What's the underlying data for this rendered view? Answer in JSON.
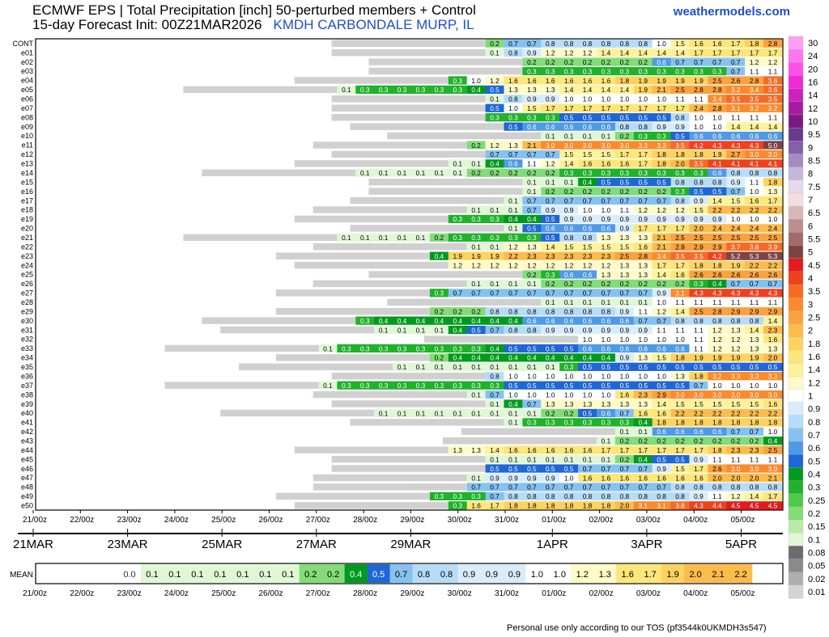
{
  "header": {
    "line1": "ECMWF EPS | Total Precipitation [inch]  50-perturbed members + Control",
    "line2": "15-day Forecast Init: 00Z21MAR2026",
    "location": "KMDH CARBONDALE MURP, IL",
    "brand": "weathermodels.com"
  },
  "footer": "Personal use only according to our TOS (pf3544k0UKMDH3s547)",
  "chart_data": {
    "type": "heatmap",
    "title": "ECMWF EPS | Total Precipitation [inch]",
    "units": "inch",
    "x_ticks": [
      "21/00z",
      "22/00z",
      "23/00z",
      "24/00z",
      "25/00z",
      "26/00z",
      "27/00z",
      "28/00z",
      "29/00z",
      "30/00z",
      "31/00z",
      "01/00z",
      "02/00z",
      "03/00z",
      "04/00z",
      "05/00z"
    ],
    "date_labels": [
      {
        "label": "21MAR",
        "tick": 0
      },
      {
        "label": "23MAR",
        "tick": 2
      },
      {
        "label": "25MAR",
        "tick": 4
      },
      {
        "label": "27MAR",
        "tick": 6
      },
      {
        "label": "29MAR",
        "tick": 8
      },
      {
        "label": "1APR",
        "tick": 11
      },
      {
        "label": "3APR",
        "tick": 13
      },
      {
        "label": "5APR",
        "tick": 15
      }
    ],
    "members": [
      "CONT",
      "e01",
      "e02",
      "e03",
      "e04",
      "e05",
      "e06",
      "e07",
      "e08",
      "e09",
      "e10",
      "e11",
      "e12",
      "e13",
      "e14",
      "e15",
      "e16",
      "e17",
      "e18",
      "e19",
      "e20",
      "e21",
      "e22",
      "e23",
      "e24",
      "e25",
      "e26",
      "e27",
      "e28",
      "e29",
      "e30",
      "e31",
      "e32",
      "e33",
      "e34",
      "e35",
      "e36",
      "e37",
      "e38",
      "e39",
      "e40",
      "e41",
      "e42",
      "e43",
      "e44",
      "e45",
      "e46",
      "e47",
      "e48",
      "e49",
      "e50"
    ],
    "member_values": [
      [
        0.2,
        0.7,
        0.7,
        0.8,
        0.8,
        0.8,
        0.8,
        0.8,
        0.8,
        1.0,
        1.5,
        1.6,
        1.6,
        1.7,
        1.8,
        2.8
      ],
      [
        0.1,
        0.8,
        0.9,
        1.2,
        1.2,
        1.2,
        1.4,
        1.4,
        1.4,
        1.4,
        1.4,
        1.7,
        1.7,
        1.7,
        1.7,
        1.7
      ],
      [
        0.2,
        0.2,
        0.2,
        0.2,
        0.2,
        0.2,
        0.2,
        0.6,
        0.7,
        0.7,
        0.7,
        0.7,
        1.2,
        1.2
      ],
      [
        0.3,
        0.3,
        0.3,
        0.3,
        0.3,
        0.3,
        0.3,
        0.3,
        0.3,
        0.3,
        0.3,
        0.7,
        1.1,
        1.1
      ],
      [
        0.3,
        1.0,
        1.2,
        1.6,
        1.6,
        1.6,
        1.6,
        1.6,
        1.6,
        1.8,
        1.9,
        1.9,
        1.9,
        1.9,
        2.5,
        2.6,
        2.8,
        3.6
      ],
      [
        0.1,
        0.3,
        0.3,
        0.3,
        0.3,
        0.3,
        0.3,
        0.4,
        0.5,
        1.3,
        1.3,
        1.3,
        1.4,
        1.4,
        1.4,
        1.4,
        1.9,
        2.1,
        2.5,
        2.8,
        2.8,
        3.2,
        3.4,
        3.6
      ],
      [
        0.1,
        0.8,
        0.9,
        0.9,
        1.0,
        1.0,
        1.0,
        1.0,
        1.0,
        1.0,
        1.1,
        1.1,
        3.4,
        3.5,
        3.5,
        3.5
      ],
      [
        0.5,
        1.0,
        1.5,
        1.7,
        1.7,
        1.7,
        1.7,
        1.7,
        1.7,
        1.7,
        1.7,
        2.4,
        2.8,
        3.1,
        3.2,
        3.2
      ],
      [
        0.3,
        0.3,
        0.3,
        0.3,
        0.5,
        0.5,
        0.5,
        0.5,
        0.5,
        0.5,
        0.8,
        1.0,
        1.0,
        1.1,
        1.1,
        1.1
      ],
      [
        0.5,
        0.6,
        0.6,
        0.6,
        0.6,
        0.6,
        0.8,
        0.8,
        0.9,
        0.9,
        1.0,
        1.0,
        1.4,
        1.4,
        1.4
      ],
      [
        0.1,
        0.1,
        0.1,
        0.1,
        0.2,
        0.3,
        0.3,
        0.5,
        0.6,
        0.6,
        0.6,
        0.6,
        0.6
      ],
      [
        0.2,
        1.2,
        1.3,
        2.1,
        3.0,
        3.0,
        3.0,
        3.0,
        3.0,
        3.3,
        3.3,
        3.5,
        4.2,
        4.3,
        4.3,
        4.3,
        5.0
      ],
      [
        0.7,
        0.7,
        0.7,
        0.7,
        1.5,
        1.5,
        1.5,
        1.7,
        1.7,
        1.8,
        1.8,
        1.8,
        1.9,
        2.7,
        3.0,
        3.0
      ],
      [
        0.1,
        0.1,
        0.4,
        0.6,
        1.1,
        1.2,
        1.4,
        1.6,
        1.6,
        1.6,
        1.7,
        1.8,
        2.0,
        3.5,
        4.1,
        4.1,
        4.1,
        4.1
      ],
      [
        0.1,
        0.1,
        0.1,
        0.1,
        0.1,
        0.1,
        0.2,
        0.2,
        0.2,
        0.2,
        0.2,
        0.3,
        0.3,
        0.3,
        0.3,
        0.3,
        0.3,
        0.3,
        0.3,
        0.6,
        0.8,
        0.8,
        0.8
      ],
      [
        0.1,
        0.1,
        0.1,
        0.4,
        0.5,
        0.5,
        0.5,
        0.5,
        0.8,
        0.8,
        0.8,
        0.9,
        1.1,
        1.8
      ],
      [
        0.1,
        0.2,
        0.2,
        0.2,
        0.2,
        0.2,
        0.2,
        0.2,
        0.3,
        0.5,
        0.5,
        0.7,
        1.0,
        1.3
      ],
      [
        0.1,
        0.7,
        0.7,
        0.7,
        0.7,
        0.7,
        0.7,
        0.7,
        0.7,
        0.8,
        0.9,
        1.4,
        1.5,
        1.6,
        1.7
      ],
      [
        0.1,
        0.1,
        0.1,
        0.7,
        0.9,
        0.9,
        1.0,
        1.0,
        1.1,
        1.2,
        1.2,
        1.2,
        1.5,
        2.2,
        2.2,
        2.2,
        2.2
      ],
      [
        0.3,
        0.3,
        0.3,
        0.4,
        0.4,
        0.5,
        0.9,
        0.9,
        0.9,
        0.9,
        0.9,
        0.9,
        0.9,
        0.9,
        0.9,
        1.0,
        1.0,
        1.0
      ],
      [
        0.1,
        0.5,
        0.6,
        0.6,
        0.6,
        0.6,
        0.9,
        1.7,
        1.7,
        1.7,
        2.0,
        2.4,
        2.4,
        2.4,
        2.4
      ],
      [
        0.1,
        0.1,
        0.1,
        0.1,
        0.1,
        0.2,
        0.3,
        0.3,
        0.3,
        0.3,
        0.3,
        0.5,
        0.8,
        0.8,
        1.3,
        1.3,
        1.3,
        2.1,
        2.5,
        2.5,
        2.5,
        2.5,
        2.5,
        2.5
      ],
      [
        0.1,
        0.1,
        1.2,
        1.3,
        1.4,
        1.5,
        1.5,
        1.5,
        1.5,
        1.6,
        2.1,
        2.9,
        2.9,
        2.9,
        3.7,
        3.8,
        3.9
      ],
      [
        0.4,
        1.9,
        1.9,
        1.9,
        2.2,
        2.3,
        2.3,
        2.3,
        2.3,
        2.3,
        2.5,
        2.8,
        3.4,
        3.5,
        3.5,
        4.2,
        5.2,
        5.3,
        5.3
      ],
      [
        1.2,
        1.2,
        1.2,
        1.2,
        1.2,
        1.2,
        1.2,
        1.2,
        1.2,
        1.3,
        1.3,
        1.7,
        1.7,
        1.8,
        1.8,
        1.9,
        2.2,
        2.2
      ],
      [
        0.2,
        0.3,
        0.6,
        0.6,
        1.3,
        1.3,
        1.3,
        1.4,
        1.6,
        2.6,
        2.6,
        2.6,
        2.6,
        2.6
      ],
      [
        0.1,
        0.1,
        0.1,
        0.1,
        0.2,
        0.2,
        0.2,
        0.2,
        0.2,
        0.2,
        0.2,
        0.2,
        0.3,
        0.4,
        0.7,
        0.7,
        0.7
      ],
      [
        0.3,
        0.7,
        0.7,
        0.7,
        0.7,
        0.7,
        0.7,
        0.7,
        0.7,
        0.7,
        0.7,
        0.7,
        0.9,
        3.1,
        4.3,
        4.3,
        4.3,
        4.3,
        4.3
      ],
      [
        0.1,
        0.1,
        0.1,
        0.1,
        0.1,
        0.1,
        1.0,
        1.1,
        1.1,
        1.1,
        1.1,
        1.1,
        1.1
      ],
      [
        0.2,
        0.2,
        0.2,
        0.8,
        0.8,
        0.8,
        0.8,
        0.8,
        0.8,
        0.8,
        0.9,
        1.1,
        1.2,
        1.4,
        2.5,
        2.8,
        2.9,
        2.9,
        2.9
      ],
      [
        0.3,
        0.4,
        0.4,
        0.4,
        0.4,
        0.4,
        0.4,
        0.4,
        0.4,
        0.6,
        0.6,
        0.6,
        0.6,
        0.6,
        0.6,
        0.7,
        0.7,
        0.8,
        0.8,
        0.8,
        0.8,
        0.8,
        1.4
      ],
      [
        0.1,
        0.1,
        0.1,
        0.1,
        0.4,
        0.5,
        0.7,
        0.8,
        0.8,
        0.9,
        0.9,
        0.9,
        0.9,
        0.9,
        0.9,
        1.1,
        1.1,
        1.1,
        1.2,
        1.3,
        1.4,
        2.3
      ],
      [
        1.0,
        1.0,
        1.0,
        1.0,
        1.0,
        1.0,
        1.1,
        1.2,
        1.2,
        1.3,
        1.6
      ],
      [
        0.1,
        0.3,
        0.3,
        0.3,
        0.3,
        0.3,
        0.3,
        0.3,
        0.3,
        0.4,
        0.5,
        0.5,
        0.5,
        0.5,
        0.6,
        0.6,
        0.6,
        0.6,
        0.6,
        0.6,
        1.1,
        1.2,
        1.2,
        1.3,
        1.3
      ],
      [
        0.2,
        0.4,
        0.4,
        0.4,
        0.4,
        0.4,
        0.4,
        0.4,
        0.4,
        0.4,
        0.9,
        1.3,
        1.5,
        1.8,
        1.9,
        1.9,
        1.9,
        1.9,
        2.0
      ],
      [
        0.1,
        0.1,
        0.1,
        0.1,
        0.1,
        0.1,
        0.1,
        0.1,
        0.1,
        0.3,
        0.5,
        0.5,
        0.5,
        0.5,
        0.5,
        0.5,
        0.5,
        0.5,
        0.5,
        0.5,
        0.5
      ],
      [
        0.8,
        1.0,
        1.0,
        1.0,
        1.0,
        1.0,
        1.0,
        1.0,
        1.0,
        1.0,
        1.3,
        1.8,
        3.2,
        3.3,
        3.3,
        3.3
      ],
      [
        0.1,
        0.3,
        0.3,
        0.3,
        0.3,
        0.3,
        0.3,
        0.3,
        0.3,
        0.3,
        0.5,
        0.5,
        0.5,
        0.5,
        0.5,
        0.5,
        0.5,
        0.5,
        0.5,
        0.5,
        0.7,
        1.0,
        1.0,
        1.0,
        1.0
      ],
      [
        0.1,
        0.7,
        1.0,
        1.0,
        1.0,
        1.0,
        1.0,
        1.0,
        1.6,
        2.3,
        2.9,
        3.0,
        3.0,
        3.0,
        3.0,
        3.0,
        3.0
      ],
      [
        0.1,
        0.4,
        0.7,
        1.3,
        1.3,
        1.3,
        1.3,
        1.3,
        1.3,
        1.4,
        1.5,
        1.5,
        1.5,
        1.5,
        1.5,
        1.6
      ],
      [
        0.1,
        0.1,
        0.1,
        0.1,
        0.1,
        0.1,
        0.1,
        0.1,
        0.1,
        0.2,
        0.2,
        0.5,
        0.6,
        0.7,
        1.6,
        1.6,
        2.2,
        2.2,
        2.2,
        2.2,
        2.2,
        2.2
      ],
      [
        0.1,
        0.3,
        0.3,
        0.3,
        0.3,
        0.3,
        0.3,
        0.4,
        1.8,
        1.8,
        1.8,
        1.8,
        1.8,
        1.8,
        1.8
      ],
      [
        0.1,
        0.1,
        0.6,
        0.6,
        0.6,
        0.6,
        0.7,
        0.7,
        1.0
      ],
      [
        0.1,
        0.2,
        0.2,
        0.2,
        0.2,
        0.2,
        0.2,
        0.2,
        0.2,
        0.4
      ],
      [
        1.3,
        1.3,
        1.4,
        1.6,
        1.6,
        1.6,
        1.6,
        1.6,
        1.7,
        1.7,
        1.7,
        1.7,
        1.7,
        1.7,
        1.8,
        2.3,
        2.3,
        2.5
      ],
      [
        0.1,
        0.1,
        0.1,
        0.1,
        0.1,
        0.1,
        0.1,
        0.2,
        0.4,
        0.5,
        0.5,
        0.9,
        1.1,
        1.1,
        1.1,
        1.1
      ],
      [
        0.5,
        0.5,
        0.5,
        0.5,
        0.5,
        0.7,
        0.7,
        0.7,
        0.7,
        0.9,
        1.5,
        1.7,
        2.6,
        3.0,
        3.0,
        3.0
      ],
      [
        0.1,
        0.9,
        0.9,
        0.9,
        0.9,
        1.0,
        1.6,
        1.6,
        1.6,
        1.6,
        1.6,
        1.6,
        1.6,
        2.0,
        2.0,
        2.0,
        2.1
      ],
      [
        0.7,
        0.7,
        0.7,
        0.7,
        0.7,
        0.7,
        0.7,
        0.7,
        0.7,
        0.7,
        0.7,
        0.8,
        0.8,
        0.8,
        0.8,
        0.8,
        0.8
      ],
      [
        0.3,
        0.3,
        0.3,
        0.7,
        0.8,
        0.8,
        0.8,
        0.8,
        0.8,
        0.8,
        0.8,
        0.8,
        0.8,
        0.8,
        0.9,
        1.1,
        1.2,
        1.4,
        1.7
      ],
      [
        0.3,
        1.6,
        1.7,
        1.8,
        1.8,
        1.8,
        1.8,
        1.8,
        1.8,
        2.0,
        3.1,
        3.1,
        3.8,
        4.3,
        4.4,
        4.5,
        4.5,
        4.5
      ]
    ],
    "mean_label": "MEAN",
    "mean_values": [
      0.0,
      0.1,
      0.1,
      0.1,
      0.1,
      0.1,
      0.1,
      0.1,
      0.2,
      0.2,
      0.4,
      0.5,
      0.7,
      0.8,
      0.8,
      0.9,
      0.9,
      0.9,
      1.0,
      1.0,
      1.2,
      1.3,
      1.6,
      1.7,
      1.9,
      2.0,
      2.1,
      2.2
    ],
    "colorbar_levels": [
      30,
      24,
      20,
      16,
      14,
      12,
      10,
      9.5,
      9,
      8.5,
      8,
      7.5,
      7,
      6.5,
      6,
      5.5,
      5,
      4.5,
      4,
      3.5,
      3,
      2.5,
      2,
      1.8,
      1.6,
      1.4,
      1.2,
      1,
      0.9,
      0.8,
      0.7,
      0.6,
      0.5,
      0.4,
      0.3,
      0.25,
      0.2,
      0.15,
      0.1,
      0.08,
      0.05,
      0.02,
      0.01
    ],
    "colorbar_colors": [
      "#ff9ef5",
      "#ff76f0",
      "#ff4fe9",
      "#f02ad8",
      "#cc22bf",
      "#a81ca0",
      "#7a1a83",
      "#6a3a8c",
      "#8560a5",
      "#a68bc2",
      "#c6b6da",
      "#e4dae9",
      "#f1dede",
      "#d9b7b7",
      "#be8d8d",
      "#a36a6a",
      "#7d4444",
      "#e41a1c",
      "#f0401c",
      "#f76a24",
      "#fa8a2b",
      "#fba23e",
      "#fcbc4c",
      "#fdd25e",
      "#fde67a",
      "#fef29a",
      "#fffbc8",
      "#ffffff",
      "#d9ecfb",
      "#b6dcf7",
      "#86c2f0",
      "#4f9ae6",
      "#1f66d6",
      "#009a1f",
      "#1fb22a",
      "#4ec94d",
      "#82dc78",
      "#b8eba8",
      "#e0f7d6",
      "#6c6c6c",
      "#8a8a8a",
      "#aeaeae",
      "#d4d4d4"
    ]
  }
}
